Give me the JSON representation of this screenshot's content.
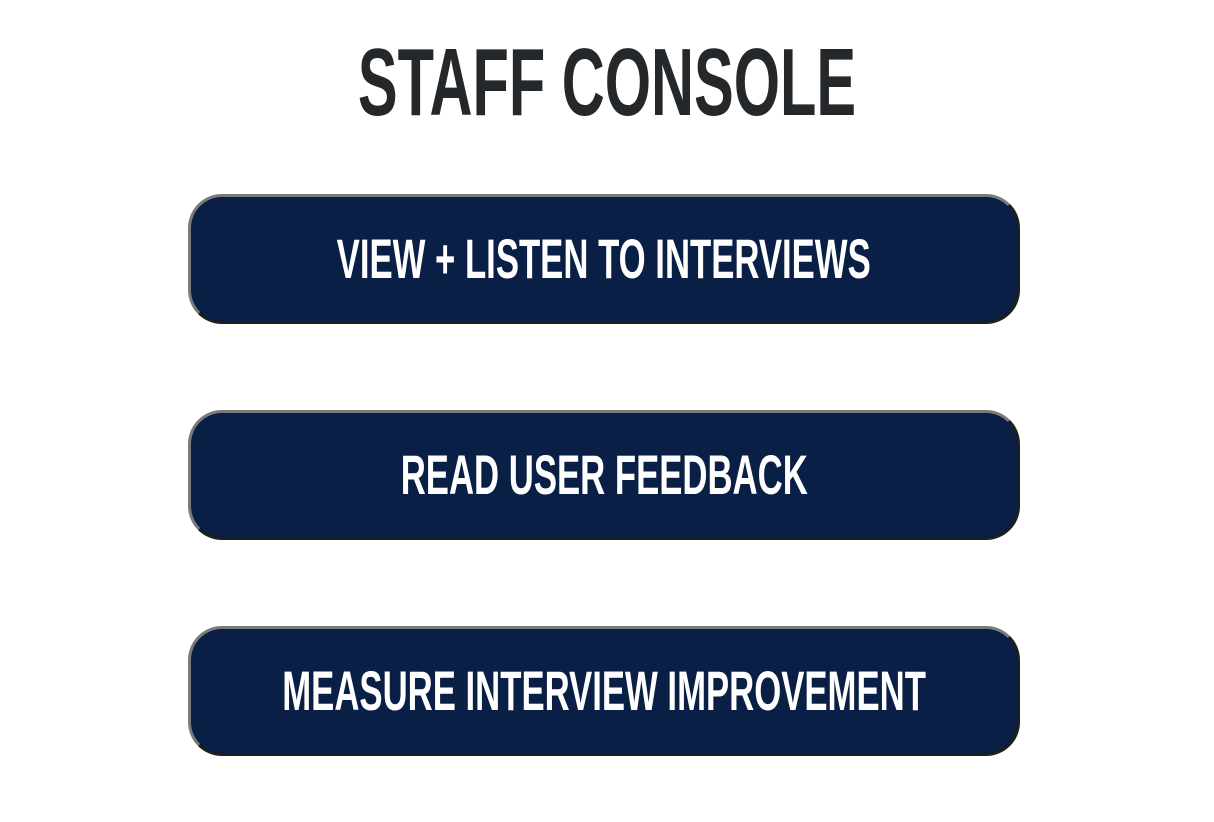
{
  "page": {
    "title": "STAFF CONSOLE"
  },
  "menu": {
    "items": [
      {
        "label": "VIEW + LISTEN TO INTERVIEWS"
      },
      {
        "label": "READ USER FEEDBACK"
      },
      {
        "label": "MEASURE INTERVIEW IMPROVEMENT"
      }
    ]
  },
  "colors": {
    "button_bg": "#0a1f45",
    "title_text": "#25282b",
    "button_text": "#ffffff"
  }
}
